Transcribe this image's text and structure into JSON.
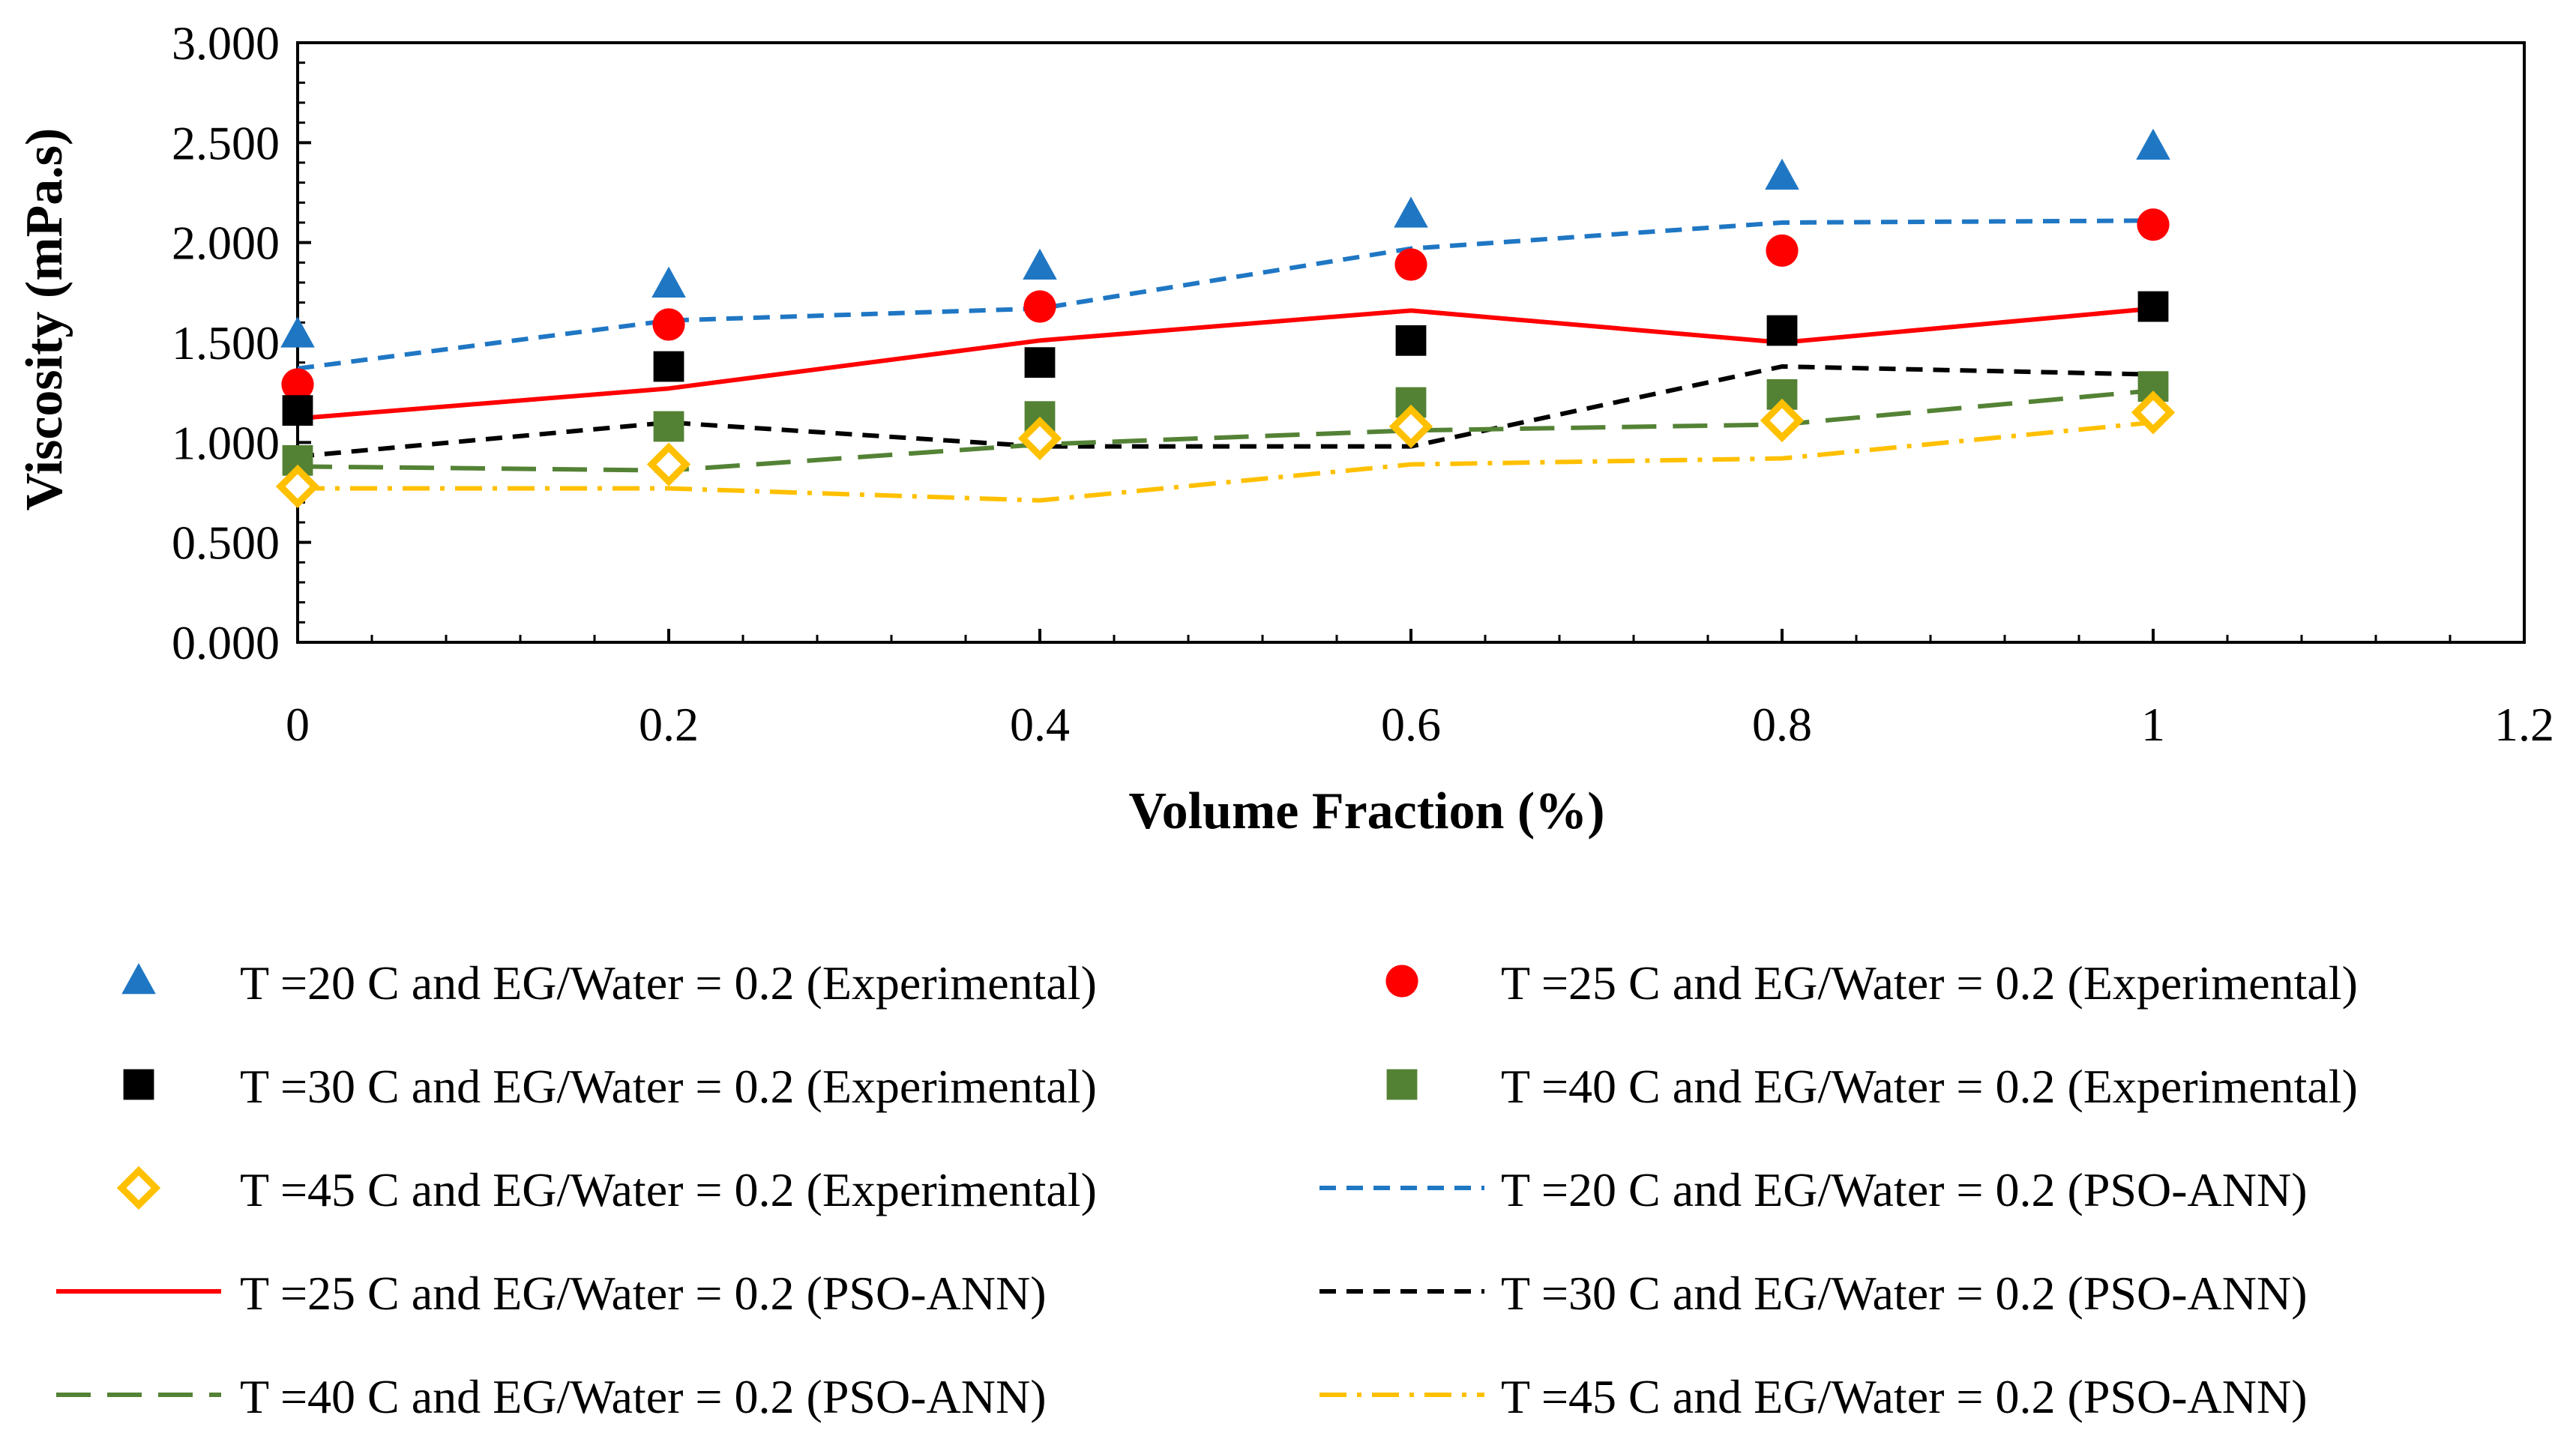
{
  "chart_data": {
    "type": "line",
    "title": "",
    "xlabel": "Volume Fraction (%)",
    "ylabel": "Viscosity (mPa.s)",
    "xlim": [
      0,
      1.2
    ],
    "ylim": [
      0,
      3
    ],
    "x_ticks": [
      "0",
      "0.2",
      "0.4",
      "0.6",
      "0.8",
      "1",
      "1.2"
    ],
    "y_ticks": [
      "0.000",
      "0.500",
      "1.000",
      "1.500",
      "2.000",
      "2.500",
      "3.000"
    ],
    "legend_position": "bottom",
    "x": [
      0,
      0.2,
      0.4,
      0.6,
      0.8,
      1
    ],
    "series": [
      {
        "name": "T =20 C and EG/Water = 0.2 (Experimental)",
        "kind": "marker",
        "marker": "triangle",
        "color": "#1F77C4",
        "values": [
          1.54,
          1.79,
          1.88,
          2.14,
          2.33,
          2.48
        ]
      },
      {
        "name": "T =25 C and EG/Water = 0.2 (Experimental)",
        "kind": "marker",
        "marker": "circle",
        "color": "#FF0000",
        "values": [
          1.29,
          1.59,
          1.68,
          1.89,
          1.96,
          2.09
        ]
      },
      {
        "name": "T =30 C and EG/Water = 0.2 (Experimental)",
        "kind": "marker",
        "marker": "square",
        "color": "#000000",
        "values": [
          1.16,
          1.38,
          1.4,
          1.51,
          1.56,
          1.68
        ]
      },
      {
        "name": "T =40 C and EG/Water = 0.2 (Experimental)",
        "kind": "marker",
        "marker": "square",
        "color": "#548235",
        "values": [
          0.91,
          1.08,
          1.13,
          1.2,
          1.24,
          1.28
        ]
      },
      {
        "name": "T =45 C and EG/Water = 0.2 (Experimental)",
        "kind": "marker",
        "marker": "diamond",
        "color": "#FFC000",
        "values": [
          0.78,
          0.89,
          1.02,
          1.08,
          1.11,
          1.15
        ]
      },
      {
        "name": "T =20 C and EG/Water = 0.2 (PSO-ANN)",
        "kind": "line",
        "dash": "dash",
        "color": "#1F77C4",
        "values": [
          1.37,
          1.61,
          1.67,
          1.97,
          2.1,
          2.11
        ]
      },
      {
        "name": "T =25 C and EG/Water = 0.2 (PSO-ANN)",
        "kind": "line",
        "dash": "solid",
        "color": "#FF0000",
        "values": [
          1.12,
          1.27,
          1.51,
          1.66,
          1.5,
          1.67
        ]
      },
      {
        "name": "T =30 C and EG/Water = 0.2 (PSO-ANN)",
        "kind": "line",
        "dash": "dash",
        "color": "#000000",
        "values": [
          0.93,
          1.1,
          0.98,
          0.98,
          1.38,
          1.34
        ]
      },
      {
        "name": "T =40 C and EG/Water = 0.2 (PSO-ANN)",
        "kind": "line",
        "dash": "longdash",
        "color": "#548235",
        "values": [
          0.88,
          0.86,
          0.99,
          1.06,
          1.09,
          1.26
        ]
      },
      {
        "name": "T =45 C and EG/Water = 0.2 (PSO-ANN)",
        "kind": "line",
        "dash": "dashdot",
        "color": "#FFC000",
        "values": [
          0.77,
          0.77,
          0.71,
          0.89,
          0.92,
          1.1
        ]
      }
    ]
  }
}
